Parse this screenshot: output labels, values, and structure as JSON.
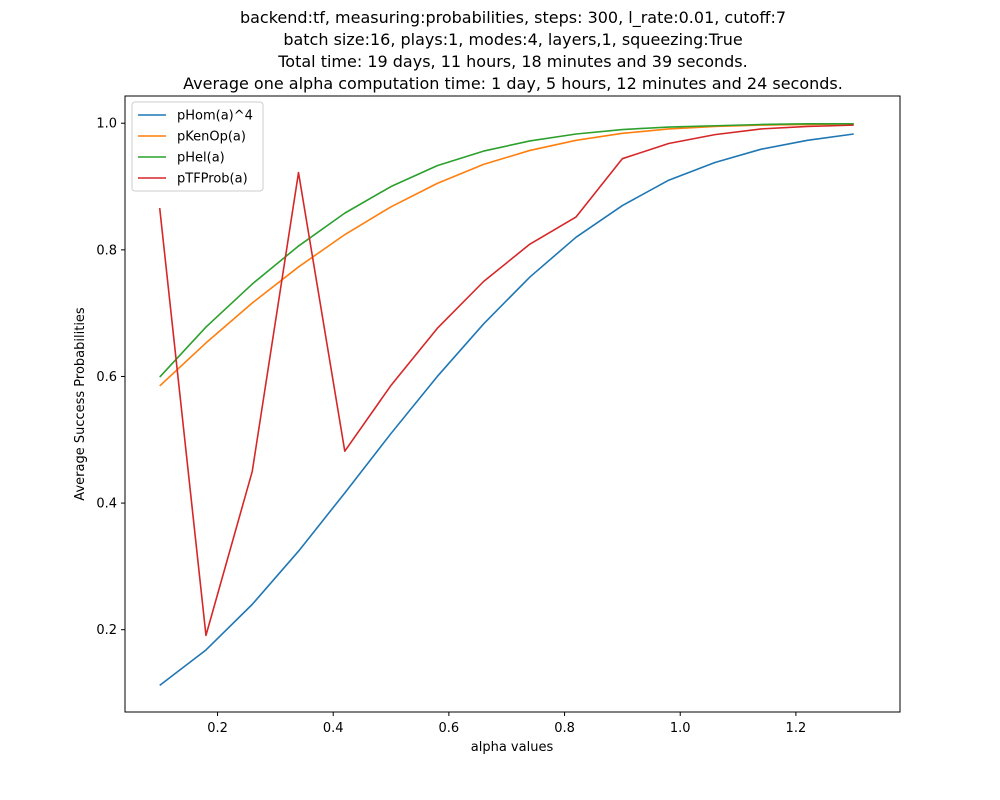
{
  "chart_data": {
    "type": "line",
    "title_lines": [
      "backend:tf, measuring:probabilities, steps: 300, l_rate:0.01, cutoff:7",
      "batch size:16, plays:1, modes:4, layers,1, squeezing:True",
      "Total time: 19 days, 11 hours, 18 minutes and 39 seconds.",
      "Average one alpha computation time: 1 day, 5 hours, 12 minutes and 24 seconds."
    ],
    "xlabel": "alpha values",
    "ylabel": "Average Success Probabilities",
    "xlim": [
      0.04,
      1.38
    ],
    "ylim": [
      0.07,
      1.043
    ],
    "xticks": [
      0.2,
      0.4,
      0.6,
      0.8,
      1.0,
      1.2
    ],
    "xtick_labels": [
      "0.2",
      "0.4",
      "0.6",
      "0.8",
      "1.0",
      "1.2"
    ],
    "yticks": [
      0.2,
      0.4,
      0.6,
      0.8,
      1.0
    ],
    "ytick_labels": [
      "0.2",
      "0.4",
      "0.6",
      "0.8",
      "1.0"
    ],
    "grid": false,
    "legend_position": "top-left",
    "x": [
      0.1,
      0.18,
      0.26,
      0.34,
      0.42,
      0.5,
      0.58,
      0.66,
      0.74,
      0.82,
      0.9,
      0.98,
      1.06,
      1.14,
      1.22,
      1.3
    ],
    "series": [
      {
        "name": "pHom(a)^4",
        "color": "#1f77b4",
        "values": [
          0.112,
          0.168,
          0.24,
          0.324,
          0.416,
          0.51,
          0.6,
          0.683,
          0.757,
          0.82,
          0.87,
          0.91,
          0.938,
          0.959,
          0.973,
          0.983
        ]
      },
      {
        "name": "pKenOp(a)",
        "color": "#ff7f0e",
        "values": [
          0.585,
          0.653,
          0.716,
          0.773,
          0.824,
          0.868,
          0.905,
          0.935,
          0.957,
          0.973,
          0.984,
          0.991,
          0.995,
          0.997,
          0.998,
          0.999
        ]
      },
      {
        "name": "pHel(a)",
        "color": "#2ca02c",
        "values": [
          0.599,
          0.678,
          0.746,
          0.806,
          0.858,
          0.9,
          0.933,
          0.956,
          0.972,
          0.983,
          0.99,
          0.994,
          0.996,
          0.998,
          0.999,
          0.999
        ]
      },
      {
        "name": "pTFProb(a)",
        "color": "#d62728",
        "values": [
          0.866,
          0.191,
          0.45,
          0.922,
          0.482,
          0.586,
          0.676,
          0.75,
          0.809,
          0.852,
          0.944,
          0.968,
          0.982,
          0.991,
          0.995,
          0.997
        ]
      }
    ]
  }
}
